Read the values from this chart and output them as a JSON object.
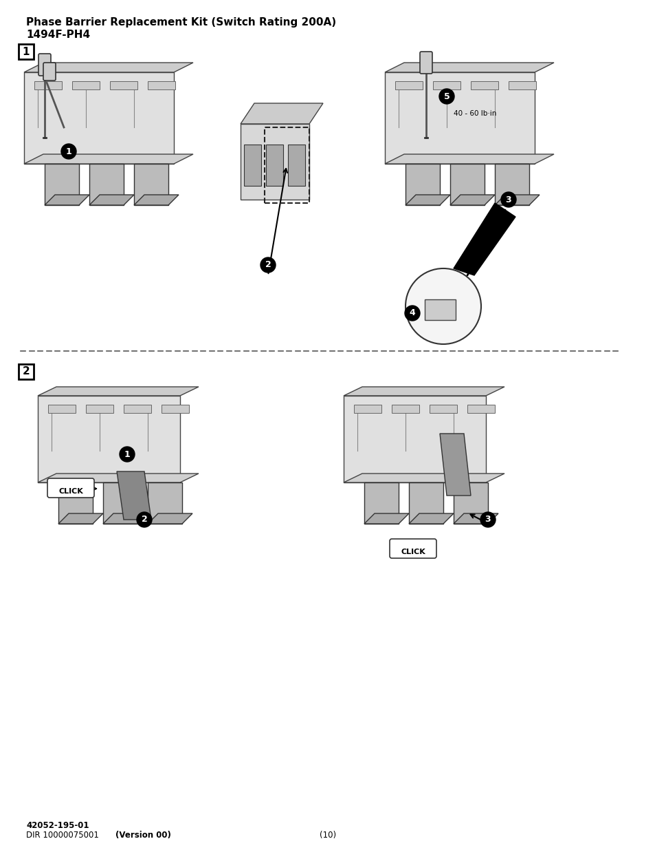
{
  "title_line1": "Phase Barrier Replacement Kit (Switch Rating 200A)",
  "title_line2": "1494F-PH4",
  "section1_label": "1",
  "section2_label": "2",
  "torque_label": "40 - 60 lb·in",
  "footer_line1": "42052-195-01",
  "footer_line2": "DIR 10000075001 ",
  "footer_bold": "(Version 00)",
  "page_number": "(10)",
  "bg_color": "#ffffff",
  "text_color": "#000000",
  "step_labels": [
    "1",
    "2",
    "3",
    "4",
    "5"
  ],
  "click_label": "CLICK",
  "dashed_line_color": "#555555"
}
